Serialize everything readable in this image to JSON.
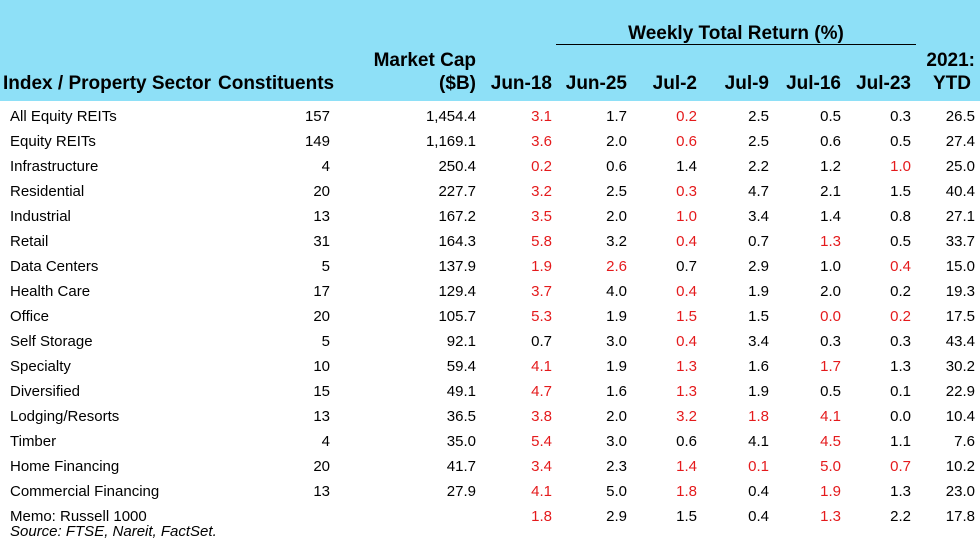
{
  "header": {
    "group_title": "Weekly Total Return (%)",
    "columns": {
      "sector": "Index / Property Sector",
      "constituents": "Constituents",
      "mcap_line1": "Market Cap",
      "mcap_line2": "($B)",
      "w1": "Jun-18",
      "w2": "Jun-25",
      "w3": "Jul-2",
      "w4": "Jul-9",
      "w5": "Jul-16",
      "w6": "Jul-23",
      "ytd_line1": "2021:",
      "ytd_line2": "YTD"
    }
  },
  "colors": {
    "header_bg": "#8ee0f7",
    "negative": "#e41a1c",
    "positive": "#000000"
  },
  "rows": [
    {
      "name": "All Equity REITs",
      "constituents": "157",
      "mcap": "1,454.4",
      "returns": [
        "3.1",
        "1.7",
        "0.2",
        "2.5",
        "0.5",
        "0.3",
        "26.5"
      ],
      "neg": [
        true,
        false,
        true,
        false,
        false,
        false,
        false
      ]
    },
    {
      "name": "Equity REITs",
      "constituents": "149",
      "mcap": "1,169.1",
      "returns": [
        "3.6",
        "2.0",
        "0.6",
        "2.5",
        "0.6",
        "0.5",
        "27.4"
      ],
      "neg": [
        true,
        false,
        true,
        false,
        false,
        false,
        false
      ]
    },
    {
      "name": "Infrastructure",
      "constituents": "4",
      "mcap": "250.4",
      "returns": [
        "0.2",
        "0.6",
        "1.4",
        "2.2",
        "1.2",
        "1.0",
        "25.0"
      ],
      "neg": [
        true,
        false,
        false,
        false,
        false,
        true,
        false
      ]
    },
    {
      "name": "Residential",
      "constituents": "20",
      "mcap": "227.7",
      "returns": [
        "3.2",
        "2.5",
        "0.3",
        "4.7",
        "2.1",
        "1.5",
        "40.4"
      ],
      "neg": [
        true,
        false,
        true,
        false,
        false,
        false,
        false
      ]
    },
    {
      "name": "Industrial",
      "constituents": "13",
      "mcap": "167.2",
      "returns": [
        "3.5",
        "2.0",
        "1.0",
        "3.4",
        "1.4",
        "0.8",
        "27.1"
      ],
      "neg": [
        true,
        false,
        true,
        false,
        false,
        false,
        false
      ]
    },
    {
      "name": "Retail",
      "constituents": "31",
      "mcap": "164.3",
      "returns": [
        "5.8",
        "3.2",
        "0.4",
        "0.7",
        "1.3",
        "0.5",
        "33.7"
      ],
      "neg": [
        true,
        false,
        true,
        false,
        true,
        false,
        false
      ]
    },
    {
      "name": "Data Centers",
      "constituents": "5",
      "mcap": "137.9",
      "returns": [
        "1.9",
        "2.6",
        "0.7",
        "2.9",
        "1.0",
        "0.4",
        "15.0"
      ],
      "neg": [
        true,
        true,
        false,
        false,
        false,
        true,
        false
      ]
    },
    {
      "name": "Health Care",
      "constituents": "17",
      "mcap": "129.4",
      "returns": [
        "3.7",
        "4.0",
        "0.4",
        "1.9",
        "2.0",
        "0.2",
        "19.3"
      ],
      "neg": [
        true,
        false,
        true,
        false,
        false,
        false,
        false
      ]
    },
    {
      "name": "Office",
      "constituents": "20",
      "mcap": "105.7",
      "returns": [
        "5.3",
        "1.9",
        "1.5",
        "1.5",
        "0.0",
        "0.2",
        "17.5"
      ],
      "neg": [
        true,
        false,
        true,
        false,
        true,
        true,
        false
      ]
    },
    {
      "name": "Self Storage",
      "constituents": "5",
      "mcap": "92.1",
      "returns": [
        "0.7",
        "3.0",
        "0.4",
        "3.4",
        "0.3",
        "0.3",
        "43.4"
      ],
      "neg": [
        false,
        false,
        true,
        false,
        false,
        false,
        false
      ]
    },
    {
      "name": "Specialty",
      "constituents": "10",
      "mcap": "59.4",
      "returns": [
        "4.1",
        "1.9",
        "1.3",
        "1.6",
        "1.7",
        "1.3",
        "30.2"
      ],
      "neg": [
        true,
        false,
        true,
        false,
        true,
        false,
        false
      ]
    },
    {
      "name": "Diversified",
      "constituents": "15",
      "mcap": "49.1",
      "returns": [
        "4.7",
        "1.6",
        "1.3",
        "1.9",
        "0.5",
        "0.1",
        "22.9"
      ],
      "neg": [
        true,
        false,
        true,
        false,
        false,
        false,
        false
      ]
    },
    {
      "name": "Lodging/Resorts",
      "constituents": "13",
      "mcap": "36.5",
      "returns": [
        "3.8",
        "2.0",
        "3.2",
        "1.8",
        "4.1",
        "0.0",
        "10.4"
      ],
      "neg": [
        true,
        false,
        true,
        true,
        true,
        false,
        false
      ]
    },
    {
      "name": "Timber",
      "constituents": "4",
      "mcap": "35.0",
      "returns": [
        "5.4",
        "3.0",
        "0.6",
        "4.1",
        "4.5",
        "1.1",
        "7.6"
      ],
      "neg": [
        true,
        false,
        false,
        false,
        true,
        false,
        false
      ]
    },
    {
      "name": "Home Financing",
      "constituents": "20",
      "mcap": "41.7",
      "returns": [
        "3.4",
        "2.3",
        "1.4",
        "0.1",
        "5.0",
        "0.7",
        "10.2"
      ],
      "neg": [
        true,
        false,
        true,
        true,
        true,
        true,
        false
      ]
    },
    {
      "name": "Commercial Financing",
      "constituents": "13",
      "mcap": "27.9",
      "returns": [
        "4.1",
        "5.0",
        "1.8",
        "0.4",
        "1.9",
        "1.3",
        "23.0"
      ],
      "neg": [
        true,
        false,
        true,
        false,
        true,
        false,
        false
      ]
    },
    {
      "name": "Memo: Russell 1000",
      "constituents": "",
      "mcap": "",
      "returns": [
        "1.8",
        "2.9",
        "1.5",
        "0.4",
        "1.3",
        "2.2",
        "17.8"
      ],
      "neg": [
        true,
        false,
        false,
        false,
        true,
        false,
        false
      ]
    }
  ],
  "source": "Source: FTSE, Nareit, FactSet."
}
